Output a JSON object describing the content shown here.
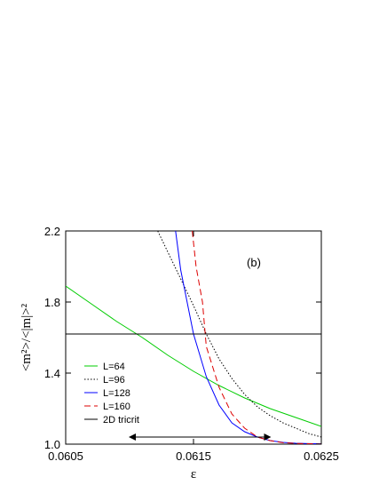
{
  "chart_data": {
    "type": "line",
    "annotation": "(b)",
    "xlabel": "ε",
    "ylabel": "<m²>/<|m|>²",
    "xlim": [
      0.0605,
      0.0625
    ],
    "ylim": [
      1.0,
      2.2
    ],
    "xticks": [
      {
        "value": 0.0605,
        "label": "0.0605"
      },
      {
        "value": 0.0615,
        "label": "0.0615"
      },
      {
        "value": 0.0625,
        "label": "0.0625"
      }
    ],
    "yticks": [
      {
        "value": 1.0,
        "label": "1.0"
      },
      {
        "value": 1.4,
        "label": "1.4"
      },
      {
        "value": 1.8,
        "label": "1.8"
      },
      {
        "value": 2.2,
        "label": "2.2"
      }
    ],
    "grid": false,
    "legend_position": "bottom-left",
    "series": [
      {
        "name": "L=64",
        "color": "#00cc00",
        "dash": "solid",
        "x": [
          0.0605,
          0.0607,
          0.0609,
          0.0611,
          0.0613,
          0.0615,
          0.0617,
          0.0619,
          0.0621,
          0.0623,
          0.0625
        ],
        "y": [
          1.89,
          1.79,
          1.69,
          1.6,
          1.5,
          1.41,
          1.33,
          1.26,
          1.2,
          1.15,
          1.1
        ]
      },
      {
        "name": "L=96",
        "color": "#000000",
        "dash": "dotted",
        "x": [
          0.06122,
          0.0613,
          0.0614,
          0.0615,
          0.0616,
          0.0617,
          0.0618,
          0.0619,
          0.062,
          0.0621,
          0.0622,
          0.0623,
          0.0624,
          0.0625
        ],
        "y": [
          2.2,
          2.08,
          1.93,
          1.78,
          1.62,
          1.48,
          1.37,
          1.28,
          1.21,
          1.16,
          1.12,
          1.09,
          1.06,
          1.04
        ]
      },
      {
        "name": "L=128",
        "color": "#0000ff",
        "dash": "solid",
        "x": [
          0.06136,
          0.0614,
          0.0615,
          0.0616,
          0.0617,
          0.0618,
          0.0619,
          0.062,
          0.0621,
          0.0622,
          0.0623,
          0.0624,
          0.0625
        ],
        "y": [
          2.2,
          1.98,
          1.62,
          1.38,
          1.22,
          1.12,
          1.07,
          1.04,
          1.02,
          1.01,
          1.005,
          1.003,
          1.002
        ]
      },
      {
        "name": "L=160",
        "color": "#dd0000",
        "dash": "dashed",
        "x": [
          0.06149,
          0.06152,
          0.06157,
          0.0616,
          0.0617,
          0.0618,
          0.0619,
          0.062,
          0.0621,
          0.0622,
          0.0623,
          0.0625
        ],
        "y": [
          2.2,
          2.0,
          1.8,
          1.55,
          1.32,
          1.17,
          1.09,
          1.04,
          1.02,
          1.008,
          1.004,
          1.001
        ]
      },
      {
        "name": "2D tricrit",
        "color": "#000000",
        "dash": "solid",
        "x": [
          0.0605,
          0.0625
        ],
        "y": [
          1.62,
          1.62
        ]
      }
    ],
    "arrow": {
      "x_start": 0.061,
      "x_end": 0.0621,
      "y": 1.04
    }
  }
}
